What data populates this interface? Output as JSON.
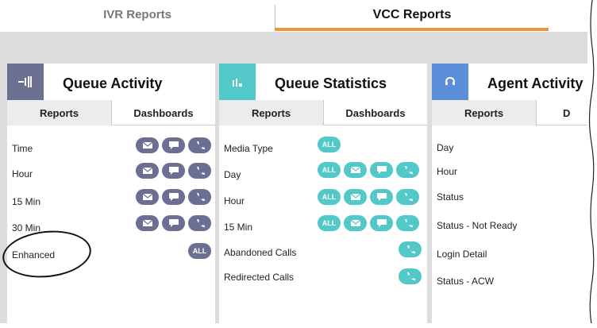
{
  "tabs": {
    "ivr": "IVR Reports",
    "vcc": "VCC Reports"
  },
  "colors": {
    "accent": "#e8973a",
    "purple": "#6b6f92",
    "teal": "#53c8c8",
    "blue": "#5b8fd9",
    "panel_icon_1": "#6b6f92"
  },
  "panels": [
    {
      "title": "Queue Activity",
      "icon": "queue-activity-icon",
      "subtabs": [
        "Reports",
        "Dashboards"
      ],
      "rows": [
        {
          "label": "Time"
        },
        {
          "label": "Hour"
        },
        {
          "label": "15 Min"
        },
        {
          "label": "30 Min"
        },
        {
          "label": "Enhanced"
        }
      ]
    },
    {
      "title": "Queue Statistics",
      "icon": "queue-statistics-icon",
      "subtabs": [
        "Reports",
        "Dashboards"
      ],
      "rows": [
        {
          "label": "Media Type"
        },
        {
          "label": "Day"
        },
        {
          "label": "Hour"
        },
        {
          "label": "15 Min"
        },
        {
          "label": "Abandoned Calls"
        },
        {
          "label": "Redirected Calls"
        }
      ]
    },
    {
      "title": "Agent Activity",
      "icon": "agent-activity-icon",
      "subtabs": [
        "Reports",
        "D"
      ],
      "rows": [
        {
          "label": "Day"
        },
        {
          "label": "Hour"
        },
        {
          "label": "Status"
        },
        {
          "label": "Status - Not Ready"
        },
        {
          "label": "Login Detail"
        },
        {
          "label": "Status - ACW"
        }
      ]
    }
  ],
  "badge_all": "ALL"
}
